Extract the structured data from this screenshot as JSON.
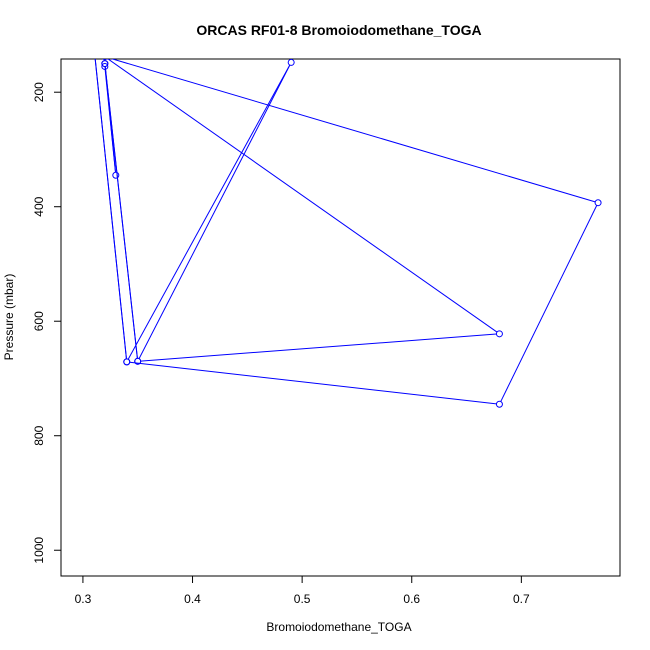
{
  "chart_data": {
    "type": "line",
    "title": "ORCAS RF01-8 Bromoiodomethane_TOGA",
    "xlabel": "Bromoiodomethane_TOGA",
    "ylabel": "Pressure (mbar)",
    "xlim": [
      0.28,
      0.79
    ],
    "ylim": [
      1045,
      142
    ],
    "y_reversed": true,
    "x_ticks": [
      0.3,
      0.4,
      0.5,
      0.6,
      0.7
    ],
    "x_tick_labels": [
      "0.3",
      "0.4",
      "0.5",
      "0.6",
      "0.7"
    ],
    "y_ticks": [
      200,
      400,
      600,
      800,
      1000
    ],
    "y_tick_labels": [
      "200",
      "400",
      "600",
      "800",
      "1000"
    ],
    "grid": false,
    "legend": "none",
    "colors": {
      "series": "#0000ff",
      "axis": "#000000"
    },
    "series": [
      {
        "x": [
          0.32,
          0.33,
          0.32,
          0.35,
          0.68,
          0.32,
          0.77,
          0.68,
          0.34,
          0.31,
          0.34,
          0.49,
          0.35,
          0.32
        ],
        "y": [
          155,
          345,
          150,
          670,
          622,
          138,
          393,
          745,
          671,
          120,
          671,
          148,
          670,
          150
        ]
      }
    ]
  }
}
